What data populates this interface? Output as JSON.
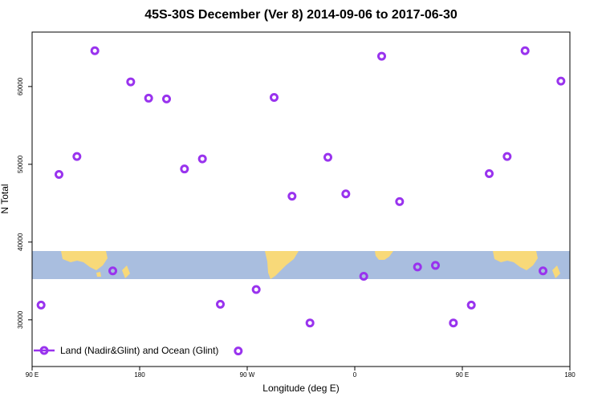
{
  "chart_data": {
    "type": "scatter",
    "title": "45S-30S December (Ver 8)   2014-09-06 to 2017-06-30",
    "xlabel": "Longitude (deg E)",
    "ylabel": "N Total",
    "xlim": [
      90,
      540
    ],
    "ylim": [
      24000,
      67000
    ],
    "x_ticks": [
      {
        "value": 90,
        "label": "90 E"
      },
      {
        "value": 180,
        "label": "180"
      },
      {
        "value": 270,
        "label": "90 W"
      },
      {
        "value": 360,
        "label": "0"
      },
      {
        "value": 450,
        "label": "90 E"
      },
      {
        "value": 540,
        "label": "180"
      }
    ],
    "y_ticks": [
      {
        "value": 30000,
        "label": "30000"
      },
      {
        "value": 40000,
        "label": "40000"
      },
      {
        "value": 50000,
        "label": "50000"
      },
      {
        "value": 60000,
        "label": "60000"
      }
    ],
    "grid": false,
    "legend_position": "bottom-left",
    "series": [
      {
        "name": "Land (Nadir&Glint) and Ocean (Glint)",
        "color": "#9933ee",
        "marker": "open-circle",
        "x": [
          97.5,
          112.5,
          127.5,
          142.5,
          157.5,
          172.5,
          187.5,
          202.5,
          217.5,
          232.5,
          247.5,
          262.5,
          277.5,
          292.5,
          307.5,
          322.5,
          337.5,
          352.5,
          367.5,
          382.5,
          397.5,
          412.5,
          427.5,
          442.5,
          457.5,
          472.5,
          487.5,
          502.5,
          517.5,
          532.5
        ],
        "y": [
          31900,
          48700,
          51000,
          64600,
          36300,
          60600,
          58500,
          58400,
          49400,
          50700,
          32000,
          26000,
          33900,
          58600,
          45900,
          29600,
          50900,
          46200,
          35600,
          63900,
          45200,
          36800,
          37000,
          29600,
          31900,
          48800,
          51000,
          64600,
          36300,
          60700
        ]
      }
    ]
  },
  "colors": {
    "ocean": "#a9bedf",
    "land": "#f8d979",
    "marker": "#9933ee"
  }
}
